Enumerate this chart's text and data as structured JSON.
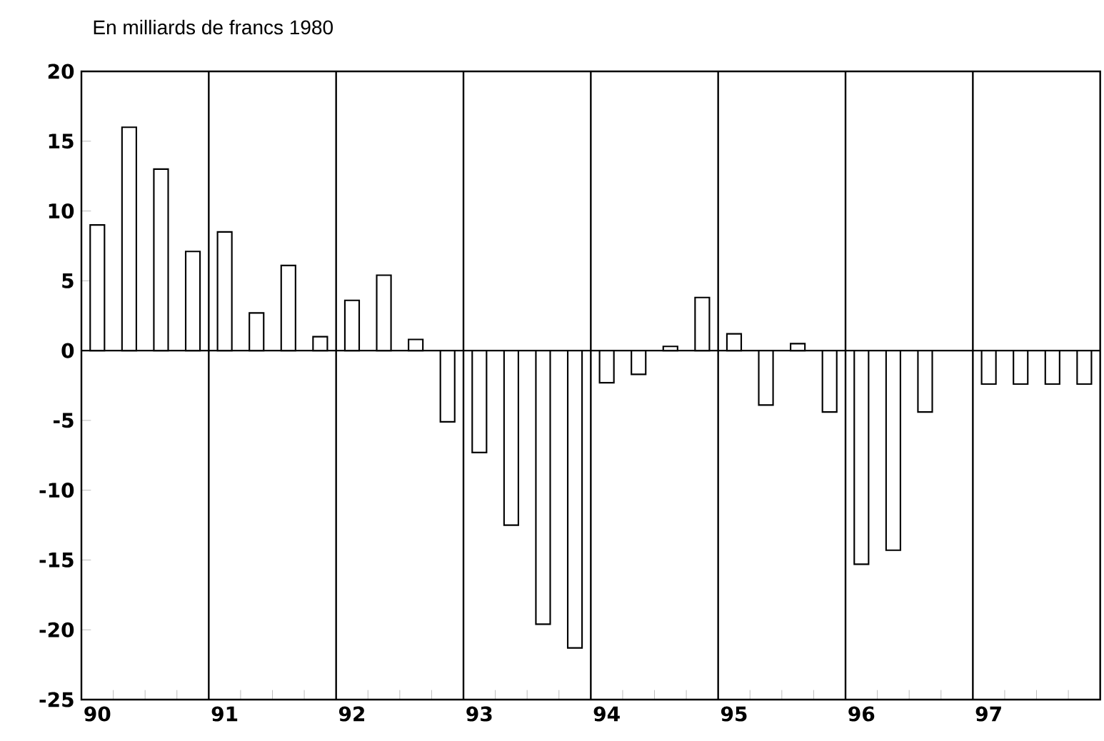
{
  "chart_data": {
    "type": "bar",
    "title": "En milliards de francs 1980",
    "categories": [
      "90",
      null,
      null,
      null,
      "91",
      null,
      null,
      null,
      "92",
      null,
      null,
      null,
      "93",
      null,
      null,
      null,
      "94",
      null,
      null,
      null,
      "95",
      null,
      null,
      null,
      "96",
      null,
      null,
      null,
      "97",
      null,
      null,
      null
    ],
    "values": [
      9,
      16,
      13,
      7.1,
      8.5,
      2.7,
      6.1,
      1.0,
      3.6,
      5.4,
      0.8,
      -5.1,
      -7.3,
      -12.5,
      -19.6,
      -21.3,
      -2.3,
      -1.7,
      0.3,
      3.8,
      1.2,
      -3.9,
      0.5,
      -4.4,
      -15.3,
      -14.3,
      -4.4,
      null,
      -2.4,
      -2.4,
      -2.4,
      -2.4
    ],
    "color": "#ffffff",
    "ylim": [
      -25,
      20
    ],
    "yticks": [
      -25,
      -20,
      -15,
      -10,
      -5,
      0,
      5,
      10,
      15,
      20
    ],
    "ref_lines": [
      {
        "axis": "y",
        "value": 0
      }
    ],
    "grid": false
  }
}
